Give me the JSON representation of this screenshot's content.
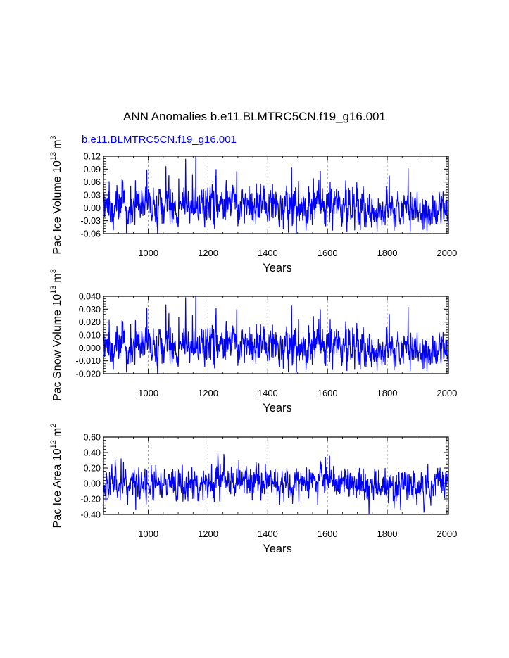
{
  "title": "ANN Anomalies b.e11.BLMTRC5CN.f19_g16.001",
  "case_label": "b.e11.BLMTRC5CN.f19_g16.001",
  "colors": {
    "series": "#0000ff",
    "case_label": "#0000ff",
    "axes": "#000000",
    "grid": "#808080"
  },
  "chart_data": [
    {
      "type": "line",
      "title": "",
      "xlabel": "Years",
      "ylabel": "Pac Ice Volume 10",
      "ylabel_exp": "13",
      "ylabel_unit": "m",
      "ylabel_unit_exp": "3",
      "xlim": [
        850,
        2005
      ],
      "ylim": [
        -0.06,
        0.12
      ],
      "x_ticks": [
        1000,
        1200,
        1400,
        1600,
        1800,
        2000
      ],
      "x_tick_labels": [
        "1000",
        "1200",
        "1400",
        "1600",
        "1800",
        "2000"
      ],
      "y_ticks": [
        -0.06,
        -0.03,
        0.0,
        0.03,
        0.06,
        0.09,
        0.12
      ],
      "y_tick_labels": [
        "-0.06",
        "-0.03",
        "0.00",
        "0.03",
        "0.06",
        "0.09",
        "0.12"
      ],
      "grid": "vertical dashed at x ticks",
      "series": [
        {
          "name": "b.e11.BLMTRC5CN.f19_g16.001",
          "x_start": 850,
          "x_end": 2005,
          "amp": 0.021,
          "trend_amp": 0.009,
          "spike_max": 0.085,
          "seed": 7,
          "values_digitized": []
        }
      ]
    },
    {
      "type": "line",
      "title": "",
      "xlabel": "Years",
      "ylabel": "Pac Snow Volume 10",
      "ylabel_exp": "13",
      "ylabel_unit": "m",
      "ylabel_unit_exp": "3",
      "xlim": [
        850,
        2005
      ],
      "ylim": [
        -0.02,
        0.04
      ],
      "x_ticks": [
        1000,
        1200,
        1400,
        1600,
        1800,
        2000
      ],
      "x_tick_labels": [
        "1000",
        "1200",
        "1400",
        "1600",
        "1800",
        "2000"
      ],
      "y_ticks": [
        -0.02,
        -0.01,
        0.0,
        0.01,
        0.02,
        0.03,
        0.04
      ],
      "y_tick_labels": [
        "-0.020",
        "-0.010",
        "0.000",
        "0.010",
        "0.020",
        "0.030",
        "0.040"
      ],
      "grid": "vertical dashed at x ticks",
      "series": [
        {
          "name": "b.e11.BLMTRC5CN.f19_g16.001",
          "x_start": 850,
          "x_end": 2005,
          "amp": 0.0068,
          "trend_amp": 0.003,
          "spike_max": 0.03,
          "seed": 7,
          "values_digitized": []
        }
      ]
    },
    {
      "type": "line",
      "title": "",
      "xlabel": "Years",
      "ylabel": "Pac Ice Area 10",
      "ylabel_exp": "12",
      "ylabel_unit": "m",
      "ylabel_unit_exp": "2",
      "xlim": [
        850,
        2005
      ],
      "ylim": [
        -0.4,
        0.6
      ],
      "x_ticks": [
        1000,
        1200,
        1400,
        1600,
        1800,
        2000
      ],
      "x_tick_labels": [
        "1000",
        "1200",
        "1400",
        "1600",
        "1800",
        "2000"
      ],
      "y_ticks": [
        -0.4,
        -0.2,
        0.0,
        0.2,
        0.4,
        0.6
      ],
      "y_tick_labels": [
        "-0.40",
        "-0.20",
        "0.00",
        "0.20",
        "0.40",
        "0.60"
      ],
      "grid": "vertical dashed at x ticks",
      "series": [
        {
          "name": "b.e11.BLMTRC5CN.f19_g16.001",
          "x_start": 850,
          "x_end": 2005,
          "amp": 0.1,
          "trend_amp": 0.06,
          "spike_max": 0.2,
          "seed": 11,
          "values_digitized": []
        }
      ]
    }
  ]
}
